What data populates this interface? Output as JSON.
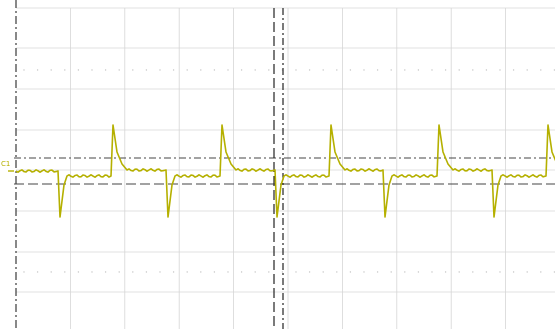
{
  "channel": {
    "label": "C1",
    "color": "#b5b000"
  },
  "colors": {
    "background": "#ffffff",
    "grid": "#d6d6d6",
    "grid_dots": "#c6c6c6",
    "border": "#3a3a3a",
    "cursor": "#444444"
  },
  "trace": {
    "type": "periodic square-like pulse train with overshoot spikes",
    "levels": {
      "high": 0.5,
      "low": -0.5
    },
    "pulse_period_divisions": 2.0,
    "visible_pulses": 5
  }
}
